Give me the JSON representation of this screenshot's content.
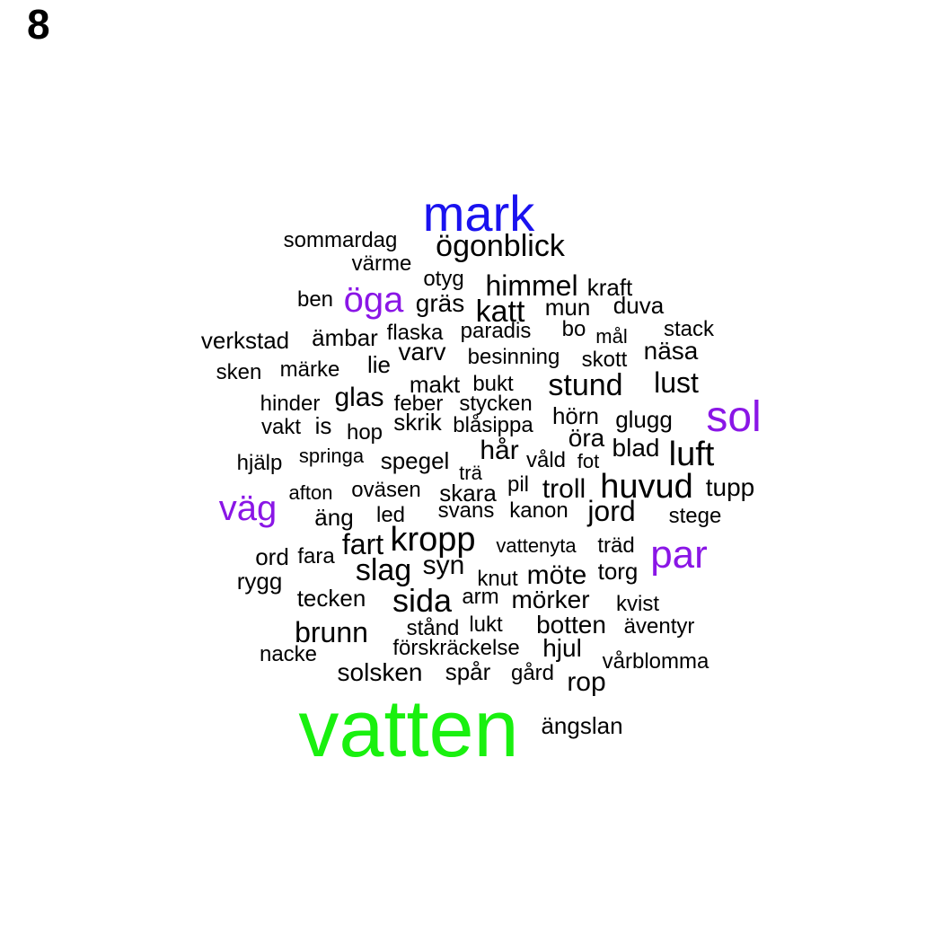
{
  "panel_label": "8",
  "colors": {
    "default": "#000000",
    "large": "#1a12ef",
    "medium": "#8a16e6",
    "largest": "#19f00f"
  },
  "words": [
    {
      "text": "vatten",
      "color": "largest"
    },
    {
      "text": "mark",
      "color": "large"
    },
    {
      "text": "sol",
      "color": "medium"
    },
    {
      "text": "par",
      "color": "medium"
    },
    {
      "text": "väg",
      "color": "medium"
    },
    {
      "text": "öga",
      "color": "medium"
    },
    {
      "text": "ögonblick",
      "color": "default"
    },
    {
      "text": "sommardag",
      "color": "default"
    },
    {
      "text": "värme",
      "color": "default"
    },
    {
      "text": "otyg",
      "color": "default"
    },
    {
      "text": "himmel",
      "color": "default"
    },
    {
      "text": "kraft",
      "color": "default"
    },
    {
      "text": "ben",
      "color": "default"
    },
    {
      "text": "gräs",
      "color": "default"
    },
    {
      "text": "katt",
      "color": "default"
    },
    {
      "text": "mun",
      "color": "default"
    },
    {
      "text": "duva",
      "color": "default"
    },
    {
      "text": "verkstad",
      "color": "default"
    },
    {
      "text": "ämbar",
      "color": "default"
    },
    {
      "text": "flaska",
      "color": "default"
    },
    {
      "text": "paradis",
      "color": "default"
    },
    {
      "text": "bo",
      "color": "default"
    },
    {
      "text": "mål",
      "color": "default"
    },
    {
      "text": "stack",
      "color": "default"
    },
    {
      "text": "varv",
      "color": "default"
    },
    {
      "text": "näsa",
      "color": "default"
    },
    {
      "text": "besinning",
      "color": "default"
    },
    {
      "text": "skott",
      "color": "default"
    },
    {
      "text": "sken",
      "color": "default"
    },
    {
      "text": "märke",
      "color": "default"
    },
    {
      "text": "lie",
      "color": "default"
    },
    {
      "text": "makt",
      "color": "default"
    },
    {
      "text": "bukt",
      "color": "default"
    },
    {
      "text": "stund",
      "color": "default"
    },
    {
      "text": "lust",
      "color": "default"
    },
    {
      "text": "hinder",
      "color": "default"
    },
    {
      "text": "glas",
      "color": "default"
    },
    {
      "text": "feber",
      "color": "default"
    },
    {
      "text": "stycken",
      "color": "default"
    },
    {
      "text": "hörn",
      "color": "default"
    },
    {
      "text": "glugg",
      "color": "default"
    },
    {
      "text": "vakt",
      "color": "default"
    },
    {
      "text": "is",
      "color": "default"
    },
    {
      "text": "skrik",
      "color": "default"
    },
    {
      "text": "blåsippa",
      "color": "default"
    },
    {
      "text": "öra",
      "color": "default"
    },
    {
      "text": "hop",
      "color": "default"
    },
    {
      "text": "hår",
      "color": "default"
    },
    {
      "text": "blad",
      "color": "default"
    },
    {
      "text": "luft",
      "color": "default"
    },
    {
      "text": "hjälp",
      "color": "default"
    },
    {
      "text": "springa",
      "color": "default"
    },
    {
      "text": "spegel",
      "color": "default"
    },
    {
      "text": "trä",
      "color": "default"
    },
    {
      "text": "våld",
      "color": "default"
    },
    {
      "text": "fot",
      "color": "default"
    },
    {
      "text": "afton",
      "color": "default"
    },
    {
      "text": "oväsen",
      "color": "default"
    },
    {
      "text": "skara",
      "color": "default"
    },
    {
      "text": "pil",
      "color": "default"
    },
    {
      "text": "troll",
      "color": "default"
    },
    {
      "text": "huvud",
      "color": "default"
    },
    {
      "text": "tupp",
      "color": "default"
    },
    {
      "text": "äng",
      "color": "default"
    },
    {
      "text": "led",
      "color": "default"
    },
    {
      "text": "svans",
      "color": "default"
    },
    {
      "text": "kanon",
      "color": "default"
    },
    {
      "text": "jord",
      "color": "default"
    },
    {
      "text": "stege",
      "color": "default"
    },
    {
      "text": "fart",
      "color": "default"
    },
    {
      "text": "kropp",
      "color": "default"
    },
    {
      "text": "vattenyta",
      "color": "default"
    },
    {
      "text": "träd",
      "color": "default"
    },
    {
      "text": "ord",
      "color": "default"
    },
    {
      "text": "fara",
      "color": "default"
    },
    {
      "text": "slag",
      "color": "default"
    },
    {
      "text": "syn",
      "color": "default"
    },
    {
      "text": "knut",
      "color": "default"
    },
    {
      "text": "möte",
      "color": "default"
    },
    {
      "text": "torg",
      "color": "default"
    },
    {
      "text": "rygg",
      "color": "default"
    },
    {
      "text": "tecken",
      "color": "default"
    },
    {
      "text": "sida",
      "color": "default"
    },
    {
      "text": "arm",
      "color": "default"
    },
    {
      "text": "mörker",
      "color": "default"
    },
    {
      "text": "kvist",
      "color": "default"
    },
    {
      "text": "brunn",
      "color": "default"
    },
    {
      "text": "stånd",
      "color": "default"
    },
    {
      "text": "lukt",
      "color": "default"
    },
    {
      "text": "botten",
      "color": "default"
    },
    {
      "text": "äventyr",
      "color": "default"
    },
    {
      "text": "nacke",
      "color": "default"
    },
    {
      "text": "förskräckelse",
      "color": "default"
    },
    {
      "text": "hjul",
      "color": "default"
    },
    {
      "text": "vårblomma",
      "color": "default"
    },
    {
      "text": "solsken",
      "color": "default"
    },
    {
      "text": "spår",
      "color": "default"
    },
    {
      "text": "gård",
      "color": "default"
    },
    {
      "text": "rop",
      "color": "default"
    },
    {
      "text": "ängslan",
      "color": "default"
    }
  ]
}
